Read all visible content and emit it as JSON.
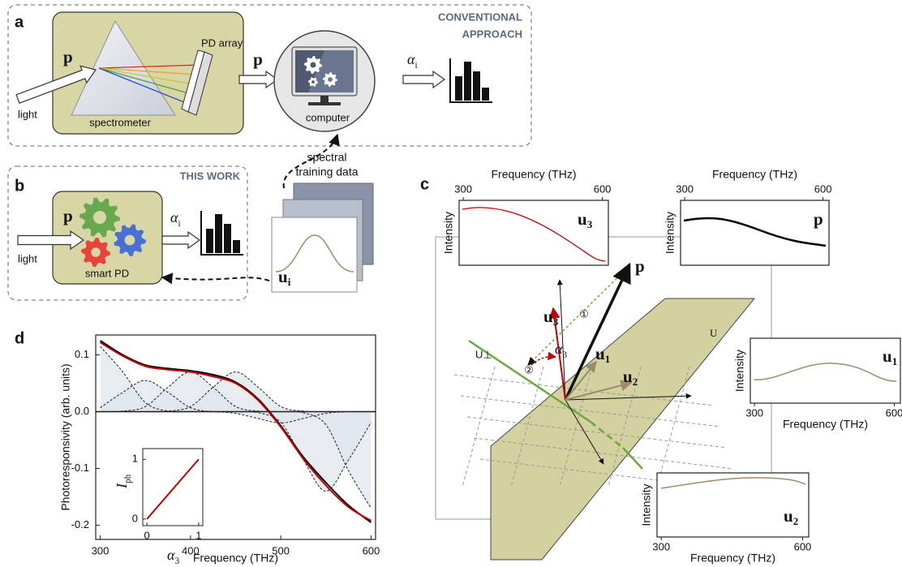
{
  "panel_a": {
    "label": "a",
    "approach": [
      "CONVENTIONAL",
      "APPROACH"
    ],
    "input": "light",
    "spectrum_in": "p",
    "detector": "PD array",
    "instrument": "spectrometer",
    "spectrum_out": "p",
    "processor": "computer",
    "coefficient": {
      "symbol": "α",
      "sub": "i"
    }
  },
  "panel_b": {
    "label": "b",
    "tag": "THIS WORK",
    "input": "light",
    "spectrum_in": "p",
    "device": "smart PD",
    "coefficient": {
      "symbol": "α",
      "sub": "i"
    }
  },
  "training_data": {
    "title": [
      "spectral",
      "training data"
    ],
    "basis": {
      "symbol": "u",
      "sub": "i"
    }
  },
  "panel_c": {
    "label": "c",
    "insets": [
      {
        "name": {
          "symbol": "u",
          "sub": "3"
        },
        "x_label": "Frequency (THz)",
        "y_label": "Intensity",
        "xlim": [
          291,
          613
        ],
        "xticks": [
          300,
          600
        ]
      },
      {
        "name": {
          "symbol": "p"
        },
        "x_label": "Frequency (THz)",
        "y_label": "Intensity",
        "xlim": [
          291,
          613
        ],
        "xticks": [
          300,
          600
        ]
      },
      {
        "name": {
          "symbol": "u",
          "sub": "1"
        },
        "x_label": "Frequency (THz)",
        "y_label": "Intensity",
        "xlim": [
          291,
          613
        ],
        "xticks": [
          300,
          600
        ]
      },
      {
        "name": {
          "symbol": "u",
          "sub": "2"
        },
        "x_label": "Frequency (THz)",
        "y_label": "Intensity",
        "xlim": [
          291,
          613
        ],
        "xticks": [
          300,
          600
        ]
      }
    ],
    "vectors": {
      "p": {
        "symbol": "p"
      },
      "u3": {
        "symbol": "u",
        "sub": "3"
      },
      "u1": {
        "symbol": "u",
        "sub": "1"
      },
      "u2": {
        "symbol": "u",
        "sub": "2"
      }
    },
    "subspace": "U",
    "complement": "U⊥",
    "steps": [
      "①",
      "②"
    ],
    "angle": {
      "symbol": "α",
      "sub": "3"
    }
  },
  "chart_data": {
    "type": "line",
    "label": "d",
    "x_label": "Frequency (THz)",
    "y_label": "Photoresponsivity (arb. units)",
    "xlim": [
      295,
      605
    ],
    "ylim": [
      -0.225,
      0.135
    ],
    "xticks": [
      300,
      400,
      500,
      600
    ],
    "yticks": [
      0.1,
      {
        "value": 0,
        "label": "0.0"
      },
      -0.1,
      -0.2
    ],
    "x": [
      300,
      325,
      350,
      375,
      400,
      425,
      450,
      475,
      500,
      525,
      550,
      575,
      600
    ],
    "series": [
      {
        "style": "dashed",
        "color": "#222222",
        "fill": "#dfe5ec",
        "values": [
          0.115,
          0.07,
          0.016,
          0.001,
          0,
          0,
          0,
          0,
          0,
          0,
          0,
          0,
          0
        ]
      },
      {
        "style": "dashed",
        "color": "#222222",
        "fill": "#dfe5ec",
        "values": [
          0.007,
          0.034,
          0.055,
          0.034,
          0.007,
          0,
          0,
          0,
          0,
          0,
          0,
          0,
          0
        ]
      },
      {
        "style": "dashed",
        "color": "#222222",
        "fill": "#dfe5ec",
        "values": [
          0,
          0.001,
          0.009,
          0.043,
          0.07,
          0.043,
          0.009,
          0.001,
          0,
          0,
          0,
          0,
          0
        ]
      },
      {
        "style": "dashed",
        "color": "#222222",
        "fill": "#dfe5ec",
        "values": [
          0,
          0,
          0,
          0.001,
          0.009,
          0.043,
          0.07,
          0.043,
          0.009,
          0.001,
          0,
          0,
          0
        ]
      },
      {
        "style": "dashed",
        "color": "#222222",
        "fill": "#dfe5ec",
        "values": [
          0,
          0,
          0,
          0,
          0,
          0,
          -0.003,
          -0.012,
          -0.02,
          -0.012,
          -0.003,
          0,
          0
        ]
      },
      {
        "style": "dashed",
        "color": "#222222",
        "fill": "#dfe5ec",
        "values": [
          0,
          0,
          0,
          0,
          0,
          0,
          0,
          -0.002,
          -0.019,
          -0.085,
          -0.14,
          -0.085,
          -0.019
        ]
      },
      {
        "style": "dashed",
        "color": "#222222",
        "fill": "#dfe5ec",
        "values": [
          0,
          0,
          0,
          0,
          0,
          0,
          0,
          0,
          0,
          -0.002,
          -0.023,
          -0.104,
          -0.17
        ]
      },
      {
        "style": "solid",
        "color": "#000000",
        "values": [
          0.125,
          0.1,
          0.082,
          0.076,
          0.072,
          0.065,
          0.052,
          0.022,
          -0.025,
          -0.08,
          -0.125,
          -0.165,
          -0.195
        ]
      },
      {
        "style": "solid",
        "color": "#c00000",
        "values": [
          0.122,
          0.098,
          0.08,
          0.074,
          0.07,
          0.062,
          0.05,
          0.02,
          -0.027,
          -0.083,
          -0.13,
          -0.168,
          -0.192
        ]
      }
    ],
    "inset": {
      "x_label": {
        "symbol": "α",
        "sub": "3"
      },
      "y_label": {
        "symbol": "I",
        "sub": "ph"
      },
      "xlim": [
        -0.08,
        1.08
      ],
      "ylim": [
        -0.11,
        1.18
      ],
      "xticks": [
        0,
        1
      ],
      "yticks": [
        0,
        1
      ],
      "x": [
        0,
        1
      ],
      "values": [
        0,
        1
      ],
      "color": "#c00000"
    }
  }
}
